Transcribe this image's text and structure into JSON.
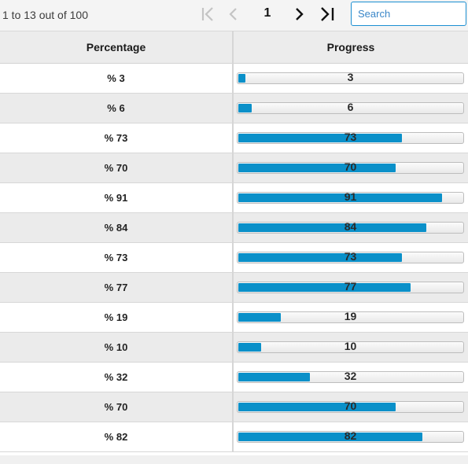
{
  "pager": {
    "range_text": "1 to 13 out of 100",
    "current_page": "1",
    "icons": [
      "first-page-icon",
      "previous-page-icon",
      "next-page-icon",
      "last-page-icon"
    ]
  },
  "search": {
    "placeholder": "Search",
    "value": ""
  },
  "grid": {
    "columns": [
      "Percentage",
      "Progress"
    ],
    "rows": [
      {
        "percentage": "% 3",
        "progress": 3,
        "progress_label": "3"
      },
      {
        "percentage": "% 6",
        "progress": 6,
        "progress_label": "6"
      },
      {
        "percentage": "% 73",
        "progress": 73,
        "progress_label": "73"
      },
      {
        "percentage": "% 70",
        "progress": 70,
        "progress_label": "70"
      },
      {
        "percentage": "% 91",
        "progress": 91,
        "progress_label": "91"
      },
      {
        "percentage": "% 84",
        "progress": 84,
        "progress_label": "84"
      },
      {
        "percentage": "% 73",
        "progress": 73,
        "progress_label": "73"
      },
      {
        "percentage": "% 77",
        "progress": 77,
        "progress_label": "77"
      },
      {
        "percentage": "% 19",
        "progress": 19,
        "progress_label": "19"
      },
      {
        "percentage": "% 10",
        "progress": 10,
        "progress_label": "10"
      },
      {
        "percentage": "% 32",
        "progress": 32,
        "progress_label": "32"
      },
      {
        "percentage": "% 70",
        "progress": 70,
        "progress_label": "70"
      },
      {
        "percentage": "% 82",
        "progress": 82,
        "progress_label": "82"
      }
    ]
  },
  "colors": {
    "accent": "#0a90c9",
    "search_border": "#1b8fd2",
    "header_bg": "#ececec",
    "alt_row_bg": "#ebebeb",
    "disabled_icon": "#c4c4c4"
  }
}
